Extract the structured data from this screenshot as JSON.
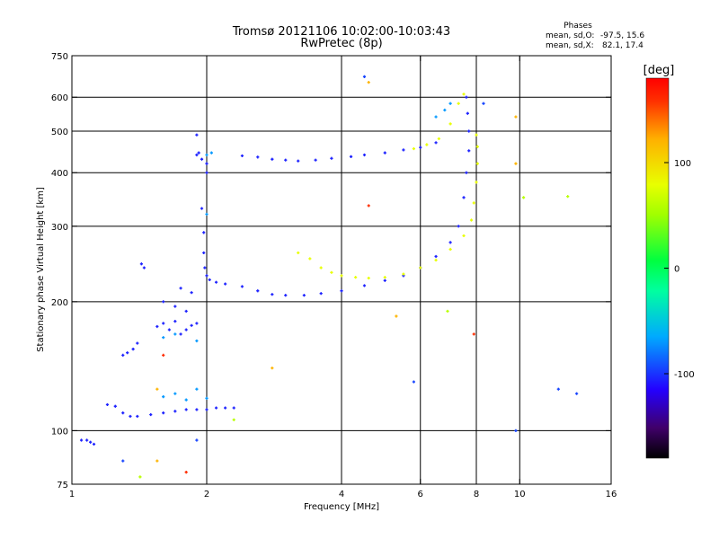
{
  "chart_data": {
    "type": "scatter",
    "title": "Tromsø 20121106 10:02:00-10:03:43",
    "subtitle": "RwPretec (8p)",
    "info": {
      "heading": "Phases",
      "line1_label": "mean, sd,O:",
      "line1_value": "-97.5, 15.6",
      "line2_label": "mean, sd,X:",
      "line2_value": "82.1, 17.4"
    },
    "xlabel": "Frequency [MHz]",
    "ylabel": "Stationary phase Virtual Height [km]",
    "x_scale": "log",
    "y_scale": "log",
    "xlim": [
      1,
      16
    ],
    "ylim": [
      75,
      750
    ],
    "x_ticks": [
      1,
      2,
      4,
      6,
      8,
      10,
      16
    ],
    "y_ticks": [
      75,
      100,
      200,
      300,
      400,
      500,
      600,
      750
    ],
    "x_grid": [
      2,
      4,
      6,
      8,
      10
    ],
    "y_grid": [
      100,
      200,
      300,
      400,
      500,
      600
    ],
    "grid": true,
    "colorbar": {
      "label": "[deg]",
      "range": [
        -180,
        180
      ],
      "ticks": [
        100,
        0,
        -100
      ],
      "placement": "right"
    },
    "series": [
      {
        "phase_deg": -105,
        "points": [
          [
            1.05,
            95
          ],
          [
            1.08,
            95
          ],
          [
            1.1,
            94
          ],
          [
            1.12,
            93
          ],
          [
            1.2,
            115
          ],
          [
            1.25,
            114
          ],
          [
            1.3,
            110
          ],
          [
            1.35,
            108
          ],
          [
            1.4,
            108
          ],
          [
            1.5,
            109
          ],
          [
            1.6,
            110
          ],
          [
            1.7,
            111
          ],
          [
            1.8,
            112
          ],
          [
            1.9,
            112
          ],
          [
            2.0,
            112
          ],
          [
            2.1,
            113
          ],
          [
            2.2,
            113
          ],
          [
            2.3,
            113
          ],
          [
            1.3,
            150
          ],
          [
            1.33,
            152
          ],
          [
            1.37,
            155
          ],
          [
            1.4,
            160
          ],
          [
            1.43,
            245
          ],
          [
            1.45,
            240
          ],
          [
            1.55,
            175
          ],
          [
            1.6,
            178
          ],
          [
            1.65,
            172
          ],
          [
            1.7,
            180
          ],
          [
            1.75,
            168
          ],
          [
            1.8,
            172
          ],
          [
            1.85,
            176
          ],
          [
            1.9,
            178
          ],
          [
            1.6,
            200
          ],
          [
            1.7,
            195
          ],
          [
            1.8,
            190
          ],
          [
            1.75,
            215
          ],
          [
            1.85,
            210
          ],
          [
            1.9,
            440
          ],
          [
            1.92,
            445
          ],
          [
            1.95,
            430
          ],
          [
            2.0,
            420
          ],
          [
            2.0,
            400
          ],
          [
            1.95,
            330
          ],
          [
            1.97,
            290
          ],
          [
            1.97,
            260
          ],
          [
            1.98,
            240
          ],
          [
            2.0,
            230
          ],
          [
            2.03,
            225
          ],
          [
            2.1,
            222
          ],
          [
            2.2,
            220
          ],
          [
            2.4,
            217
          ],
          [
            2.6,
            212
          ],
          [
            2.8,
            208
          ],
          [
            3.0,
            207
          ],
          [
            3.3,
            207
          ],
          [
            3.6,
            209
          ],
          [
            4.0,
            212
          ],
          [
            4.5,
            218
          ],
          [
            5.0,
            224
          ],
          [
            5.5,
            230
          ],
          [
            6.0,
            240
          ],
          [
            6.5,
            255
          ],
          [
            7.0,
            275
          ],
          [
            7.3,
            300
          ],
          [
            7.5,
            350
          ],
          [
            7.6,
            400
          ],
          [
            7.7,
            450
          ],
          [
            7.7,
            500
          ],
          [
            7.65,
            550
          ],
          [
            7.6,
            600
          ],
          [
            2.4,
            438
          ],
          [
            2.6,
            435
          ],
          [
            2.8,
            430
          ],
          [
            3.0,
            428
          ],
          [
            3.2,
            426
          ],
          [
            3.5,
            428
          ],
          [
            3.8,
            432
          ],
          [
            4.2,
            436
          ],
          [
            4.5,
            440
          ],
          [
            5.0,
            445
          ],
          [
            5.5,
            452
          ],
          [
            6.0,
            458
          ],
          [
            6.5,
            470
          ],
          [
            1.9,
            490
          ]
        ]
      },
      {
        "phase_deg": -70,
        "points": [
          [
            1.6,
            120
          ],
          [
            1.7,
            122
          ],
          [
            1.8,
            118
          ],
          [
            1.9,
            125
          ],
          [
            2.0,
            119
          ],
          [
            1.6,
            165
          ],
          [
            1.7,
            168
          ],
          [
            1.9,
            162
          ],
          [
            2.0,
            440
          ],
          [
            2.05,
            445
          ],
          [
            2.0,
            320
          ],
          [
            6.5,
            540
          ],
          [
            6.8,
            560
          ],
          [
            7.0,
            580
          ]
        ]
      },
      {
        "phase_deg": 80,
        "points": [
          [
            3.2,
            260
          ],
          [
            3.4,
            252
          ],
          [
            3.6,
            240
          ],
          [
            3.8,
            234
          ],
          [
            4.0,
            230
          ],
          [
            4.3,
            228
          ],
          [
            4.6,
            227
          ],
          [
            5.0,
            228
          ],
          [
            5.5,
            232
          ],
          [
            6.0,
            240
          ],
          [
            6.5,
            250
          ],
          [
            7.0,
            265
          ],
          [
            7.5,
            285
          ],
          [
            7.8,
            310
          ],
          [
            7.9,
            340
          ],
          [
            8.0,
            380
          ],
          [
            8.05,
            420
          ],
          [
            8.05,
            460
          ],
          [
            8.0,
            490
          ],
          [
            5.8,
            455
          ],
          [
            6.2,
            465
          ],
          [
            6.6,
            480
          ],
          [
            7.0,
            520
          ],
          [
            7.3,
            580
          ],
          [
            7.5,
            610
          ]
        ]
      },
      {
        "phase_deg": 120,
        "points": [
          [
            4.6,
            650
          ],
          [
            9.8,
            540
          ],
          [
            5.3,
            185
          ],
          [
            2.8,
            140
          ],
          [
            1.55,
            85
          ],
          [
            1.55,
            125
          ],
          [
            9.8,
            420
          ]
        ]
      },
      {
        "phase_deg": 160,
        "points": [
          [
            7.9,
            168
          ],
          [
            4.6,
            335
          ],
          [
            1.6,
            150
          ],
          [
            1.8,
            80
          ]
        ]
      },
      {
        "phase_deg": -95,
        "points": [
          [
            5.8,
            130
          ],
          [
            12.2,
            125
          ],
          [
            13.4,
            122
          ],
          [
            9.8,
            100
          ],
          [
            1.9,
            95
          ],
          [
            1.3,
            85
          ],
          [
            4.5,
            670
          ],
          [
            8.3,
            580
          ]
        ]
      },
      {
        "phase_deg": 60,
        "points": [
          [
            10.2,
            350
          ],
          [
            12.8,
            352
          ],
          [
            1.42,
            78
          ],
          [
            2.3,
            106
          ],
          [
            6.9,
            190
          ]
        ]
      }
    ]
  }
}
